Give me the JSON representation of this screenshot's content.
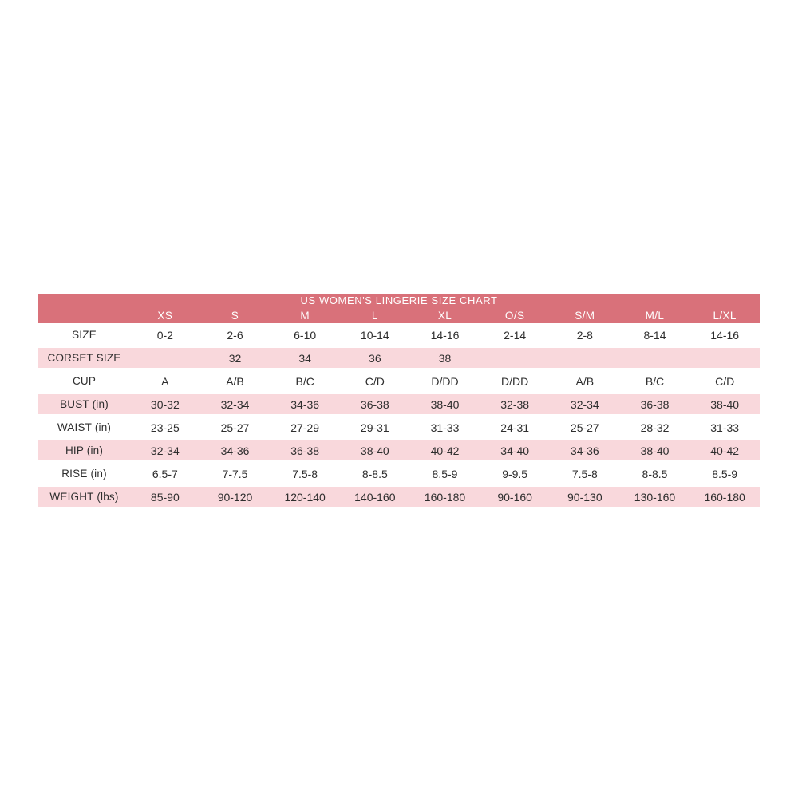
{
  "colors": {
    "header_bg": "#d9717a",
    "row_pink_bg": "#f9d8dc",
    "row_white_bg": "#ffffff",
    "header_text": "#ffffff",
    "body_text": "#2e2e2e",
    "page_bg": "#ffffff"
  },
  "chart_data": {
    "type": "table",
    "title": "US WOMEN'S LINGERIE SIZE CHART",
    "columns": [
      "XS",
      "S",
      "M",
      "L",
      "XL",
      "O/S",
      "S/M",
      "M/L",
      "L/XL"
    ],
    "rows": [
      {
        "label": "SIZE",
        "values": [
          "0-2",
          "2-6",
          "6-10",
          "10-14",
          "14-16",
          "2-14",
          "2-8",
          "8-14",
          "14-16"
        ]
      },
      {
        "label": "CORSET SIZE",
        "values": [
          "",
          "32",
          "34",
          "36",
          "38",
          "",
          "",
          "",
          ""
        ]
      },
      {
        "label": "CUP",
        "values": [
          "A",
          "A/B",
          "B/C",
          "C/D",
          "D/DD",
          "D/DD",
          "A/B",
          "B/C",
          "C/D"
        ]
      },
      {
        "label": "BUST (in)",
        "values": [
          "30-32",
          "32-34",
          "34-36",
          "36-38",
          "38-40",
          "32-38",
          "32-34",
          "36-38",
          "38-40"
        ]
      },
      {
        "label": "WAIST (in)",
        "values": [
          "23-25",
          "25-27",
          "27-29",
          "29-31",
          "31-33",
          "24-31",
          "25-27",
          "28-32",
          "31-33"
        ]
      },
      {
        "label": "HIP (in)",
        "values": [
          "32-34",
          "34-36",
          "36-38",
          "38-40",
          "40-42",
          "34-40",
          "34-36",
          "38-40",
          "40-42"
        ]
      },
      {
        "label": "RISE (in)",
        "values": [
          "6.5-7",
          "7-7.5",
          "7.5-8",
          "8-8.5",
          "8.5-9",
          "9-9.5",
          "7.5-8",
          "8-8.5",
          "8.5-9"
        ]
      },
      {
        "label": "WEIGHT (lbs)",
        "values": [
          "85-90",
          "90-120",
          "120-140",
          "140-160",
          "160-180",
          "90-160",
          "90-130",
          "130-160",
          "160-180"
        ]
      }
    ],
    "layout": {
      "alternating_row_shading": true,
      "pink_row_indexes": [
        1,
        3,
        5,
        7
      ],
      "label_column_position": "left",
      "values_alignment": "center"
    }
  }
}
